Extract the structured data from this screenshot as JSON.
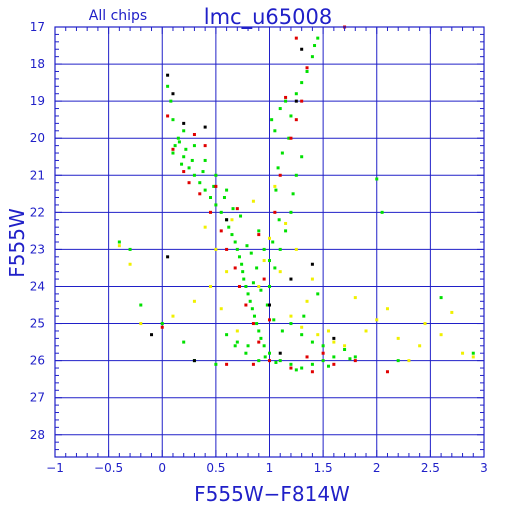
{
  "chart_data": {
    "type": "scatter",
    "title": "lmc_u65008",
    "subtitle": "All chips",
    "xlabel": "F555W−F814W",
    "ylabel": "F555W",
    "xlim": [
      -1,
      3
    ],
    "ylim": [
      28.6,
      17
    ],
    "y_inverted": true,
    "grid": true,
    "x_ticks": [
      -1,
      -0.5,
      0,
      0.5,
      1,
      1.5,
      2,
      2.5,
      3
    ],
    "x_tick_labels": [
      "−1",
      "−0.5",
      "0",
      "0.5",
      "1",
      "1.5",
      "2",
      "2.5",
      "3"
    ],
    "y_ticks": [
      17,
      18,
      19,
      20,
      21,
      22,
      23,
      24,
      25,
      26,
      27,
      28
    ],
    "y_tick_labels": [
      "17",
      "18",
      "19",
      "20",
      "21",
      "22",
      "23",
      "24",
      "25",
      "26",
      "27",
      "28"
    ],
    "colors": {
      "frame": "#2020c8",
      "grid": "#2020c8",
      "text": "#2020c8"
    },
    "series": [
      {
        "color": "#00e000",
        "points": [
          [
            0.15,
            20.0
          ],
          [
            0.12,
            20.2
          ],
          [
            0.1,
            20.4
          ],
          [
            0.2,
            20.5
          ],
          [
            0.18,
            20.7
          ],
          [
            0.25,
            20.8
          ],
          [
            0.3,
            21.0
          ],
          [
            0.35,
            21.2
          ],
          [
            0.4,
            21.4
          ],
          [
            0.45,
            21.6
          ],
          [
            0.5,
            21.8
          ],
          [
            0.55,
            22.0
          ],
          [
            0.6,
            22.2
          ],
          [
            0.62,
            22.4
          ],
          [
            0.65,
            22.6
          ],
          [
            0.68,
            22.8
          ],
          [
            0.7,
            23.0
          ],
          [
            0.72,
            23.2
          ],
          [
            0.74,
            23.4
          ],
          [
            0.75,
            23.6
          ],
          [
            0.76,
            23.8
          ],
          [
            0.78,
            24.0
          ],
          [
            0.8,
            24.2
          ],
          [
            0.82,
            24.4
          ],
          [
            0.84,
            24.6
          ],
          [
            0.86,
            24.8
          ],
          [
            0.88,
            25.0
          ],
          [
            0.9,
            25.2
          ],
          [
            0.92,
            25.4
          ],
          [
            0.95,
            25.6
          ],
          [
            1.0,
            25.8
          ],
          [
            1.1,
            26.0
          ],
          [
            1.2,
            26.1
          ],
          [
            1.3,
            26.2
          ],
          [
            1.4,
            26.1
          ],
          [
            1.5,
            26.0
          ],
          [
            1.6,
            25.9
          ],
          [
            0.8,
            25.6
          ],
          [
            0.7,
            25.5
          ],
          [
            0.6,
            25.3
          ],
          [
            1.0,
            24.0
          ],
          [
            1.05,
            23.5
          ],
          [
            1.1,
            23.0
          ],
          [
            1.15,
            22.5
          ],
          [
            1.2,
            22.0
          ],
          [
            1.22,
            21.5
          ],
          [
            1.25,
            21.0
          ],
          [
            1.3,
            20.5
          ],
          [
            1.02,
            19.5
          ],
          [
            1.05,
            19.8
          ],
          [
            1.1,
            19.2
          ],
          [
            1.15,
            19.0
          ],
          [
            1.2,
            19.4
          ],
          [
            1.25,
            18.8
          ],
          [
            1.3,
            18.5
          ],
          [
            1.35,
            18.2
          ],
          [
            1.4,
            17.8
          ],
          [
            1.42,
            17.5
          ],
          [
            1.45,
            17.3
          ],
          [
            0.05,
            18.6
          ],
          [
            0.08,
            19.0
          ],
          [
            0.1,
            19.5
          ],
          [
            0.2,
            19.8
          ],
          [
            0.3,
            20.2
          ],
          [
            0.4,
            20.6
          ],
          [
            0.5,
            21.0
          ],
          [
            0.6,
            21.4
          ],
          [
            0.9,
            22.5
          ],
          [
            0.95,
            23.0
          ],
          [
            1.0,
            23.3
          ],
          [
            1.2,
            25.0
          ],
          [
            1.3,
            25.3
          ],
          [
            1.4,
            25.5
          ],
          [
            1.5,
            25.6
          ],
          [
            1.7,
            25.7
          ],
          [
            1.8,
            25.9
          ],
          [
            2.2,
            26.0
          ],
          [
            2.0,
            21.1
          ],
          [
            2.05,
            22.0
          ],
          [
            -0.3,
            23.0
          ],
          [
            -0.2,
            24.5
          ],
          [
            0.0,
            25.0
          ],
          [
            0.2,
            25.5
          ],
          [
            0.3,
            26.0
          ],
          [
            0.5,
            26.1
          ],
          [
            0.85,
            23.9
          ],
          [
            0.92,
            24.1
          ],
          [
            0.88,
            23.5
          ],
          [
            0.83,
            23.1
          ],
          [
            0.79,
            22.9
          ],
          [
            0.73,
            22.1
          ],
          [
            0.66,
            21.9
          ],
          [
            0.58,
            21.6
          ],
          [
            0.48,
            21.3
          ],
          [
            0.38,
            20.9
          ],
          [
            0.28,
            20.6
          ],
          [
            0.22,
            20.3
          ],
          [
            0.16,
            20.1
          ],
          [
            1.12,
            20.4
          ],
          [
            1.18,
            20.0
          ],
          [
            1.08,
            20.8
          ],
          [
            1.06,
            21.4
          ],
          [
            1.09,
            22.2
          ],
          [
            1.03,
            22.8
          ],
          [
            0.98,
            24.5
          ],
          [
            1.04,
            24.9
          ],
          [
            1.12,
            25.2
          ],
          [
            0.96,
            25.9
          ],
          [
            1.06,
            26.05
          ],
          [
            1.25,
            26.25
          ],
          [
            1.55,
            26.15
          ],
          [
            1.75,
            25.95
          ],
          [
            0.9,
            26.0
          ],
          [
            0.78,
            25.8
          ],
          [
            0.68,
            25.6
          ],
          [
            1.32,
            24.8
          ],
          [
            1.45,
            24.2
          ],
          [
            2.6,
            24.3
          ],
          [
            2.9,
            25.8
          ],
          [
            -0.4,
            22.8
          ]
        ]
      },
      {
        "color": "#e00000",
        "points": [
          [
            0.1,
            20.3
          ],
          [
            0.2,
            20.9
          ],
          [
            0.35,
            21.5
          ],
          [
            0.45,
            22.0
          ],
          [
            0.55,
            22.5
          ],
          [
            0.6,
            23.0
          ],
          [
            0.68,
            23.5
          ],
          [
            0.72,
            24.0
          ],
          [
            0.78,
            24.5
          ],
          [
            0.85,
            25.0
          ],
          [
            0.9,
            25.5
          ],
          [
            1.0,
            26.0
          ],
          [
            1.2,
            26.2
          ],
          [
            1.4,
            26.3
          ],
          [
            1.6,
            26.1
          ],
          [
            1.1,
            21.0
          ],
          [
            1.2,
            20.0
          ],
          [
            1.3,
            19.0
          ],
          [
            1.05,
            22.0
          ],
          [
            0.95,
            23.8
          ],
          [
            0.3,
            19.9
          ],
          [
            0.5,
            21.3
          ],
          [
            0.7,
            21.9
          ],
          [
            1.5,
            25.8
          ],
          [
            1.8,
            26.0
          ],
          [
            2.1,
            26.3
          ],
          [
            0.0,
            25.1
          ],
          [
            0.6,
            26.1
          ],
          [
            1.25,
            17.3
          ],
          [
            1.35,
            18.1
          ],
          [
            1.15,
            18.9
          ],
          [
            1.25,
            19.5
          ],
          [
            0.4,
            20.2
          ],
          [
            0.9,
            22.6
          ],
          [
            1.0,
            24.9
          ],
          [
            1.35,
            25.9
          ],
          [
            1.7,
            17.0
          ],
          [
            0.05,
            19.4
          ],
          [
            0.25,
            21.2
          ],
          [
            0.85,
            26.1
          ]
        ]
      },
      {
        "color": "#f0f000",
        "points": [
          [
            -0.4,
            22.9
          ],
          [
            -0.3,
            23.4
          ],
          [
            0.4,
            22.4
          ],
          [
            0.5,
            23.0
          ],
          [
            0.55,
            24.6
          ],
          [
            0.7,
            25.2
          ],
          [
            0.9,
            24.0
          ],
          [
            1.1,
            23.6
          ],
          [
            1.2,
            24.8
          ],
          [
            1.3,
            25.1
          ],
          [
            1.45,
            25.3
          ],
          [
            1.6,
            25.5
          ],
          [
            1.7,
            25.6
          ],
          [
            1.9,
            25.2
          ],
          [
            2.0,
            24.9
          ],
          [
            2.2,
            25.4
          ],
          [
            2.4,
            25.6
          ],
          [
            2.6,
            25.3
          ],
          [
            2.8,
            25.8
          ],
          [
            1.0,
            22.7
          ],
          [
            1.15,
            22.3
          ],
          [
            1.25,
            23.0
          ],
          [
            1.4,
            23.8
          ],
          [
            0.6,
            23.6
          ],
          [
            0.45,
            24.0
          ],
          [
            0.3,
            24.4
          ],
          [
            -0.2,
            25.0
          ],
          [
            0.1,
            24.8
          ],
          [
            0.85,
            21.7
          ],
          [
            1.05,
            21.3
          ],
          [
            2.45,
            25.0
          ],
          [
            2.7,
            24.7
          ],
          [
            2.9,
            25.9
          ],
          [
            1.8,
            24.3
          ],
          [
            2.1,
            24.6
          ],
          [
            0.65,
            22.2
          ],
          [
            0.95,
            23.3
          ],
          [
            1.35,
            24.4
          ],
          [
            1.55,
            25.2
          ],
          [
            2.3,
            26.0
          ]
        ]
      },
      {
        "color": "#000000",
        "points": [
          [
            0.05,
            18.3
          ],
          [
            0.1,
            18.8
          ],
          [
            0.2,
            19.6
          ],
          [
            0.4,
            19.7
          ],
          [
            0.6,
            22.2
          ],
          [
            1.0,
            24.5
          ],
          [
            1.2,
            23.8
          ],
          [
            1.4,
            23.4
          ],
          [
            1.25,
            19.0
          ],
          [
            -0.1,
            25.3
          ],
          [
            0.3,
            26.0
          ],
          [
            1.3,
            17.6
          ],
          [
            0.05,
            23.2
          ],
          [
            1.1,
            25.8
          ],
          [
            1.6,
            25.4
          ]
        ]
      }
    ]
  }
}
